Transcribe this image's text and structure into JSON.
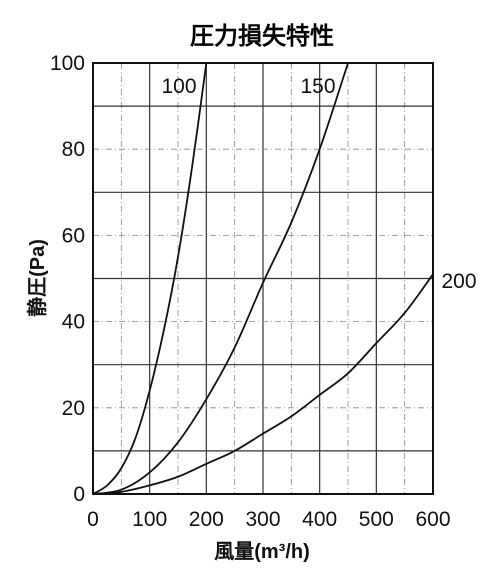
{
  "chart_data": {
    "type": "line",
    "title": "圧力損失特性",
    "xlabel": "風量(m³/h)",
    "ylabel": "静圧(Pa)",
    "xlim": [
      0,
      600
    ],
    "ylim": [
      0,
      100
    ],
    "x_ticks": [
      "0",
      "100",
      "200",
      "300",
      "400",
      "500",
      "600"
    ],
    "y_ticks": [
      "0",
      "20",
      "40",
      "60",
      "80",
      "100"
    ],
    "grid": true,
    "series": [
      {
        "name": "100",
        "x": [
          0,
          25,
          50,
          75,
          100,
          125,
          150,
          175,
          200
        ],
        "y": [
          0,
          2,
          6,
          13,
          24,
          38,
          55,
          76,
          100
        ]
      },
      {
        "name": "150",
        "x": [
          0,
          50,
          100,
          150,
          200,
          250,
          300,
          350,
          400,
          450
        ],
        "y": [
          0,
          1,
          5,
          12,
          22,
          34,
          49,
          63,
          80,
          100
        ]
      },
      {
        "name": "200",
        "x": [
          0,
          50,
          100,
          150,
          200,
          250,
          300,
          350,
          400,
          450,
          500,
          550,
          600
        ],
        "y": [
          0,
          0.5,
          2,
          4,
          7,
          10,
          14,
          18,
          23,
          28,
          35,
          42,
          51
        ]
      }
    ]
  }
}
